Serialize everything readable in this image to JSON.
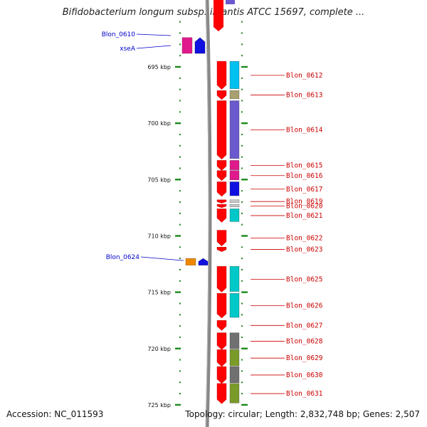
{
  "title": "Bifidobacterium longum subsp. infantis ATCC 15697, complete ...",
  "footer": {
    "accession": "Accession: NC_011593",
    "topology": "Topology: circular; Length: 2,832,748 bp; Genes: 2,507"
  },
  "scale": {
    "ticks": [
      {
        "label": "695 kbp",
        "kbp": 695
      },
      {
        "label": "700 kbp",
        "kbp": 700
      },
      {
        "label": "705 kbp",
        "kbp": 705
      },
      {
        "label": "710 kbp",
        "kbp": 710
      },
      {
        "label": "715 kbp",
        "kbp": 715
      },
      {
        "label": "720 kbp",
        "kbp": 720
      },
      {
        "label": "725 kbp",
        "kbp": 725
      }
    ]
  },
  "forward_genes": [
    {
      "name": "Blon_0610",
      "start": 692.4,
      "end": 693.8,
      "color": "#e0198c"
    },
    {
      "name": "xseA",
      "start": 692.4,
      "end": 693.8,
      "color": "#1010e0"
    },
    {
      "name": "Blon_0624",
      "start": 712.0,
      "end": 712.6,
      "color": "#ee8800"
    }
  ],
  "forward_extra": [
    {
      "start": 692.4,
      "end": 693.8,
      "color": "#e0198c"
    },
    {
      "start": 712.0,
      "end": 712.6,
      "color": "#1010e0"
    }
  ],
  "reverse_genes": [
    {
      "name": "Blon_0612",
      "start": 694.5,
      "end": 697.0,
      "color": "#00c0f0"
    },
    {
      "name": "Blon_0613",
      "start": 697.1,
      "end": 697.9,
      "color": "#a8a070"
    },
    {
      "name": "Blon_0614",
      "start": 698.0,
      "end": 703.2,
      "color": "#6a5acd"
    },
    {
      "name": "Blon_0615",
      "start": 703.3,
      "end": 704.2,
      "color": "#e0198c"
    },
    {
      "name": "Blon_0616",
      "start": 704.2,
      "end": 705.1,
      "color": "#e0198c"
    },
    {
      "name": "Blon_0617",
      "start": 705.2,
      "end": 706.5,
      "color": "#1010e0"
    },
    {
      "name": "Blon_0619",
      "start": 706.8,
      "end": 707.1,
      "color": "#c8c8c8"
    },
    {
      "name": "Blon_0620",
      "start": 707.2,
      "end": 707.5,
      "color": "#c8c8c8"
    },
    {
      "name": "Blon_0621",
      "start": 707.6,
      "end": 708.8,
      "color": "#00c8c8"
    },
    {
      "name": "Blon_0622",
      "start": 709.5,
      "end": 710.9,
      "color": "#ffffff"
    },
    {
      "name": "Blon_0623",
      "start": 711.0,
      "end": 711.4,
      "color": "#ffffff"
    },
    {
      "name": "Blon_0625",
      "start": 712.7,
      "end": 715.0,
      "color": "#00c8c8"
    },
    {
      "name": "Blon_0626",
      "start": 715.1,
      "end": 717.3,
      "color": "#00c8c8"
    },
    {
      "name": "Blon_0627",
      "start": 717.5,
      "end": 718.4,
      "color": "#ffffff"
    },
    {
      "name": "Blon_0628",
      "start": 718.6,
      "end": 720.1,
      "color": "#707070"
    },
    {
      "name": "Blon_0629",
      "start": 720.1,
      "end": 721.6,
      "color": "#7a9a2a"
    },
    {
      "name": "Blon_0630",
      "start": 721.6,
      "end": 723.1,
      "color": "#707070"
    },
    {
      "name": "Blon_0631",
      "start": 723.1,
      "end": 724.9,
      "color": "#7a9a2a"
    }
  ]
}
